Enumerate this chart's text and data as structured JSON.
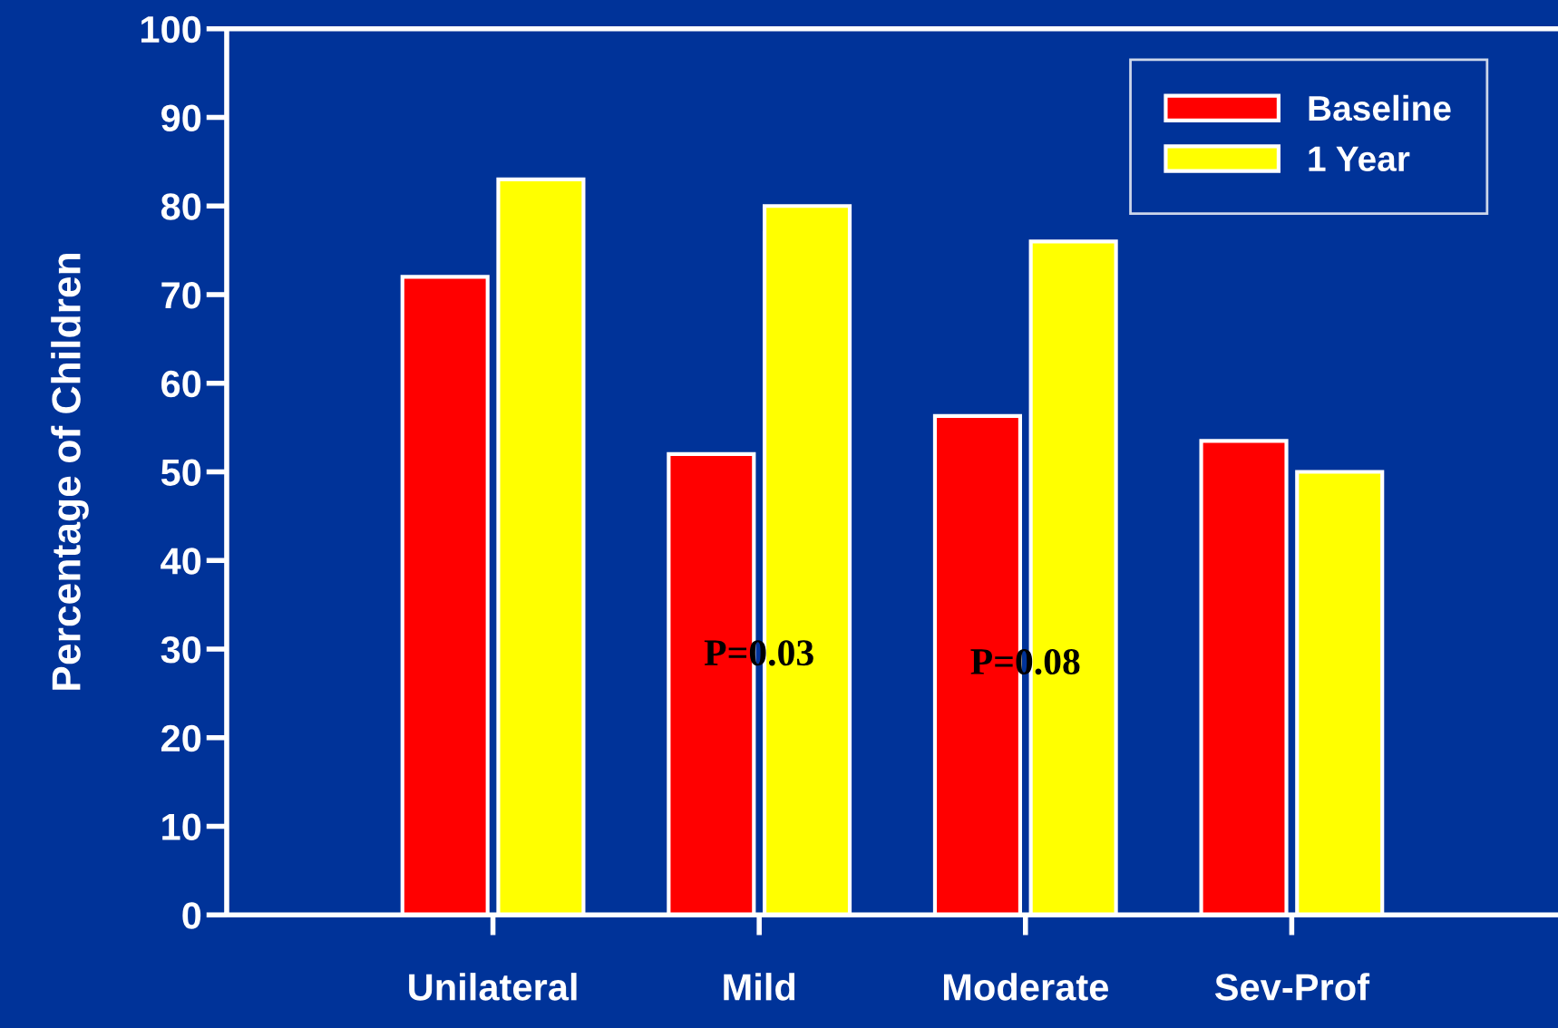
{
  "chart_data": {
    "type": "bar",
    "ylabel": "Percentage of Children",
    "categories": [
      "Unilateral",
      "Mild",
      "Moderate",
      "Sev-Prof"
    ],
    "series": [
      {
        "name": "Baseline",
        "color": "#ff0000",
        "values": [
          72,
          52,
          56.3,
          53.5
        ]
      },
      {
        "name": "1 Year",
        "color": "#ffff00",
        "values": [
          83,
          80,
          76,
          50
        ]
      }
    ],
    "ylim": [
      0,
      100
    ],
    "yticks": [
      0,
      10,
      20,
      30,
      40,
      50,
      60,
      70,
      80,
      90,
      100
    ],
    "legend": "top right",
    "grid": false,
    "annotations": [
      "P=0.03",
      "P=0.08"
    ]
  }
}
